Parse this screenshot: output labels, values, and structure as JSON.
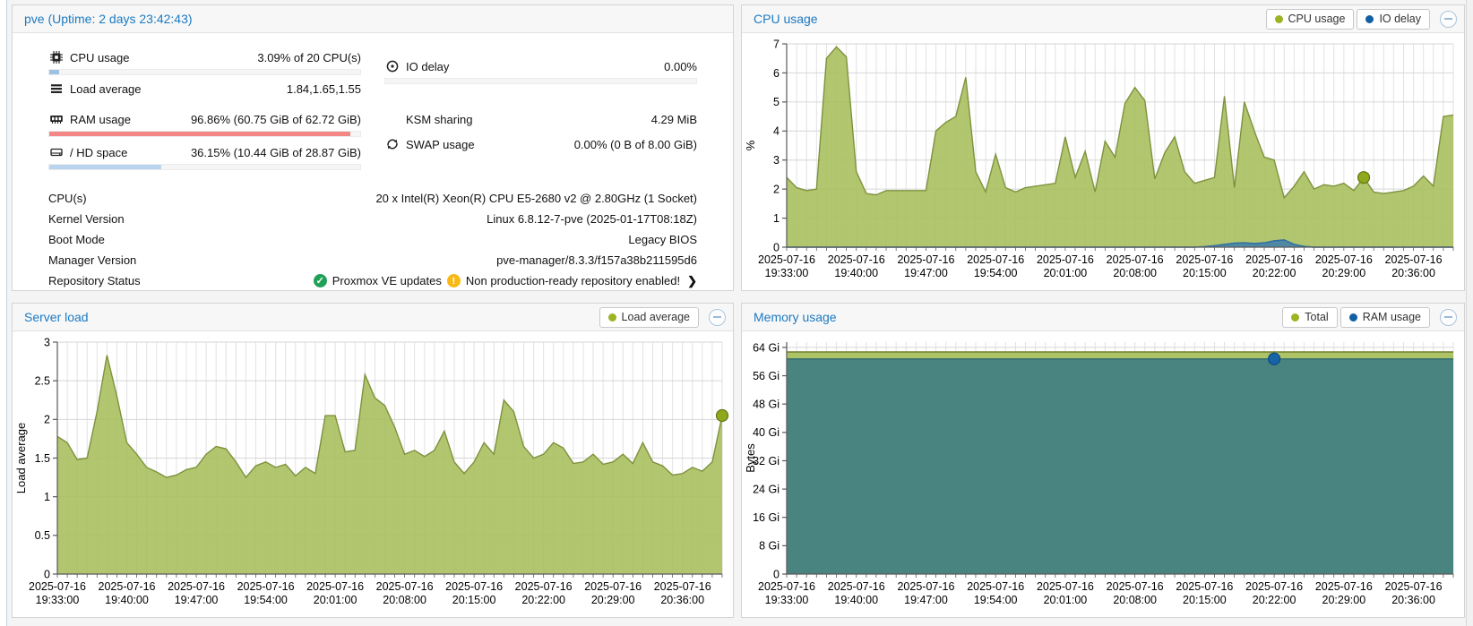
{
  "node_panel": {
    "title": "pve (Uptime: 2 days 23:42:43)",
    "stats_left": [
      {
        "icon": "cpu-icon",
        "label": "CPU usage",
        "value": "3.09% of 20 CPU(s)",
        "bar_pct": 3.09,
        "bar_color": "#9dc2e2"
      },
      {
        "icon": "load-icon",
        "label": "Load average",
        "value": "1.84,1.65,1.55"
      },
      {
        "icon": "ram-icon",
        "label": "RAM usage",
        "value": "96.86% (60.75 GiB of 62.72 GiB)",
        "bar_pct": 96.86,
        "bar_color": "#f48686"
      },
      {
        "icon": "hdd-icon",
        "label": "/ HD space",
        "value": "36.15% (10.44 GiB of 28.87 GiB)",
        "bar_pct": 36.15,
        "bar_color": "#b8d4ee"
      }
    ],
    "stats_right": [
      {
        "icon": "io-delay-icon",
        "label": "IO delay",
        "value": "0.00%",
        "bar_pct": 0,
        "bar_color": "#9dc2e2"
      },
      {
        "icon": "none",
        "label": "KSM sharing",
        "value": "4.29 MiB"
      },
      {
        "icon": "swap-icon",
        "label": "SWAP usage",
        "value": "0.00% (0 B of 8.00 GiB)"
      }
    ],
    "info_rows": [
      {
        "label": "CPU(s)",
        "value": "20 x Intel(R) Xeon(R) CPU E5-2680 v2 @ 2.80GHz (1 Socket)"
      },
      {
        "label": "Kernel Version",
        "value": "Linux 6.8.12-7-pve (2025-01-17T08:18Z)"
      },
      {
        "label": "Boot Mode",
        "value": "Legacy BIOS"
      },
      {
        "label": "Manager Version",
        "value": "pve-manager/8.3.3/f157a38b211595d6"
      }
    ],
    "repo": {
      "label": "Repository Status",
      "ok_text": "Proxmox VE updates",
      "ok_color": "#21a157",
      "warn_text": "Non production-ready repository enabled!",
      "warn_color": "#f9b915"
    }
  },
  "chart_data": [
    {
      "type": "area",
      "title": "CPU usage",
      "xlabel": "",
      "ylabel": "%",
      "ylim": [
        0,
        7
      ],
      "yticks": [
        {
          "v": 0,
          "label": "0"
        },
        {
          "v": 1,
          "label": "1"
        },
        {
          "v": 2,
          "label": "2"
        },
        {
          "v": 3,
          "label": "3"
        },
        {
          "v": 4,
          "label": "4"
        },
        {
          "v": 5,
          "label": "5"
        },
        {
          "v": 6,
          "label": "6"
        },
        {
          "v": 7,
          "label": "7"
        }
      ],
      "x_date": "2025-07-16",
      "x_times": [
        "19:33:00",
        "19:40:00",
        "19:47:00",
        "19:54:00",
        "20:01:00",
        "20:08:00",
        "20:15:00",
        "20:22:00",
        "20:29:00",
        "20:36:00"
      ],
      "label_every": 7,
      "n": 68,
      "legend": [
        {
          "label": "CPU usage",
          "color": "#9cb323"
        },
        {
          "label": "IO delay",
          "color": "#125fa6"
        }
      ],
      "series": [
        {
          "name": "CPU usage",
          "color": "#7e923e",
          "fill": "#a9c05e",
          "fill_opacity": 0.9,
          "values": [
            2.4,
            2.05,
            1.95,
            2.0,
            6.5,
            6.9,
            6.55,
            2.6,
            1.85,
            1.8,
            1.95,
            1.95,
            1.95,
            1.95,
            1.95,
            4.0,
            4.3,
            4.5,
            5.85,
            2.6,
            1.9,
            3.2,
            2.05,
            1.9,
            2.05,
            2.1,
            2.15,
            2.2,
            3.8,
            2.4,
            3.3,
            1.9,
            3.65,
            3.1,
            4.95,
            5.5,
            5.05,
            2.35,
            3.25,
            3.8,
            2.6,
            2.2,
            2.3,
            2.4,
            5.2,
            2.05,
            5.0,
            4.0,
            3.1,
            3.0,
            1.7,
            2.1,
            2.6,
            2.0,
            2.15,
            2.1,
            2.2,
            1.95,
            2.4,
            1.9,
            1.85,
            1.9,
            1.95,
            2.1,
            2.45,
            2.1,
            4.5,
            4.55
          ]
        },
        {
          "name": "IO delay",
          "color": "#2d6da4",
          "fill": "#3d7dae",
          "fill_opacity": 0.85,
          "values": [
            0,
            0,
            0,
            0,
            0,
            0,
            0,
            0,
            0,
            0,
            0,
            0,
            0,
            0,
            0,
            0,
            0,
            0,
            0,
            0,
            0,
            0,
            0,
            0,
            0,
            0,
            0,
            0,
            0,
            0,
            0,
            0,
            0,
            0,
            0,
            0,
            0,
            0,
            0,
            0,
            0,
            0,
            0.02,
            0.05,
            0.1,
            0.14,
            0.15,
            0.13,
            0.15,
            0.22,
            0.25,
            0.1,
            0.03,
            0,
            0,
            0,
            0,
            0,
            0,
            0,
            0,
            0,
            0,
            0,
            0,
            0,
            0,
            0
          ]
        }
      ],
      "markers": [
        {
          "series": 0,
          "i": 58,
          "v": 2.4,
          "fill": "#90a81e",
          "stroke": "#61770d"
        }
      ]
    },
    {
      "type": "area",
      "title": "Server load",
      "xlabel": "",
      "ylabel": "Load average",
      "ylim": [
        0,
        3
      ],
      "yticks": [
        {
          "v": 0,
          "label": "0"
        },
        {
          "v": 0.5,
          "label": "0.5"
        },
        {
          "v": 1,
          "label": "1"
        },
        {
          "v": 1.5,
          "label": "1.5"
        },
        {
          "v": 2,
          "label": "2"
        },
        {
          "v": 2.5,
          "label": "2.5"
        },
        {
          "v": 3,
          "label": "3"
        }
      ],
      "x_date": "2025-07-16",
      "x_times": [
        "19:33:00",
        "19:40:00",
        "19:47:00",
        "19:54:00",
        "20:01:00",
        "20:08:00",
        "20:15:00",
        "20:22:00",
        "20:29:00",
        "20:36:00"
      ],
      "label_every": 7,
      "n": 68,
      "legend": [
        {
          "label": "Load average",
          "color": "#9cb323"
        }
      ],
      "series": [
        {
          "name": "Load average",
          "color": "#7e923e",
          "fill": "#a9c05e",
          "fill_opacity": 0.9,
          "values": [
            1.78,
            1.7,
            1.48,
            1.5,
            2.1,
            2.83,
            2.3,
            1.7,
            1.55,
            1.38,
            1.32,
            1.25,
            1.28,
            1.35,
            1.38,
            1.55,
            1.65,
            1.62,
            1.45,
            1.25,
            1.4,
            1.45,
            1.38,
            1.42,
            1.27,
            1.38,
            1.3,
            2.05,
            2.05,
            1.58,
            1.6,
            2.58,
            2.28,
            2.18,
            1.9,
            1.55,
            1.6,
            1.52,
            1.6,
            1.85,
            1.45,
            1.3,
            1.45,
            1.7,
            1.55,
            2.25,
            2.1,
            1.65,
            1.5,
            1.55,
            1.7,
            1.63,
            1.43,
            1.45,
            1.55,
            1.42,
            1.45,
            1.55,
            1.43,
            1.7,
            1.45,
            1.4,
            1.28,
            1.3,
            1.38,
            1.33,
            1.45,
            2.05
          ]
        }
      ],
      "markers": [
        {
          "series": 0,
          "i": 67,
          "v": 2.05,
          "fill": "#90a81e",
          "stroke": "#61770d"
        }
      ]
    },
    {
      "type": "area",
      "title": "Memory usage",
      "xlabel": "",
      "ylabel": "Bytes",
      "ylim": [
        0,
        65.5
      ],
      "yticks": [
        {
          "v": 0,
          "label": "0"
        },
        {
          "v": 8,
          "label": "8 Gi"
        },
        {
          "v": 16,
          "label": "16 Gi"
        },
        {
          "v": 24,
          "label": "24 Gi"
        },
        {
          "v": 32,
          "label": "32 Gi"
        },
        {
          "v": 40,
          "label": "40 Gi"
        },
        {
          "v": 48,
          "label": "48 Gi"
        },
        {
          "v": 56,
          "label": "56 Gi"
        },
        {
          "v": 64,
          "label": "64 Gi"
        }
      ],
      "x_date": "2025-07-16",
      "x_times": [
        "19:33:00",
        "19:40:00",
        "19:47:00",
        "19:54:00",
        "20:01:00",
        "20:08:00",
        "20:15:00",
        "20:22:00",
        "20:29:00",
        "20:36:00"
      ],
      "label_every": 7,
      "n": 68,
      "legend": [
        {
          "label": "Total",
          "color": "#9cb323"
        },
        {
          "label": "RAM usage",
          "color": "#125fa6"
        }
      ],
      "series": [
        {
          "name": "Total",
          "color": "#6f8030",
          "fill": "#a9c05e",
          "fill_opacity": 0.95,
          "values": [
            62.72,
            62.72,
            62.72,
            62.72,
            62.72,
            62.72,
            62.72,
            62.72,
            62.72,
            62.72,
            62.72,
            62.72,
            62.72,
            62.72,
            62.72,
            62.72,
            62.72,
            62.72,
            62.72,
            62.72,
            62.72,
            62.72,
            62.72,
            62.72,
            62.72,
            62.72,
            62.72,
            62.72,
            62.72,
            62.72,
            62.72,
            62.72,
            62.72,
            62.72,
            62.72,
            62.72,
            62.72,
            62.72,
            62.72,
            62.72,
            62.72,
            62.72,
            62.72,
            62.72,
            62.72,
            62.72,
            62.72,
            62.72,
            62.72,
            62.72,
            62.72,
            62.72,
            62.72,
            62.72,
            62.72,
            62.72,
            62.72,
            62.72,
            62.72,
            62.72,
            62.72,
            62.72,
            62.72,
            62.72,
            62.72,
            62.72,
            62.72,
            62.72
          ]
        },
        {
          "name": "RAM usage",
          "color": "#2e6a6d",
          "fill": "#417f82",
          "fill_opacity": 0.92,
          "values": [
            60.75,
            60.75,
            60.75,
            60.75,
            60.75,
            60.75,
            60.75,
            60.75,
            60.75,
            60.75,
            60.75,
            60.75,
            60.75,
            60.75,
            60.75,
            60.75,
            60.75,
            60.75,
            60.75,
            60.75,
            60.75,
            60.75,
            60.75,
            60.75,
            60.75,
            60.75,
            60.75,
            60.75,
            60.75,
            60.75,
            60.75,
            60.75,
            60.75,
            60.75,
            60.75,
            60.75,
            60.75,
            60.75,
            60.75,
            60.75,
            60.75,
            60.75,
            60.75,
            60.75,
            60.75,
            60.75,
            60.75,
            60.75,
            60.75,
            60.75,
            60.75,
            60.75,
            60.75,
            60.75,
            60.75,
            60.75,
            60.75,
            60.75,
            60.75,
            60.75,
            60.75,
            60.75,
            60.75,
            60.75,
            60.75,
            60.75,
            60.75,
            60.75
          ]
        }
      ],
      "markers": [
        {
          "series": 1,
          "i": 49,
          "v": 60.75,
          "fill": "#1663a8",
          "stroke": "#0c4a82"
        }
      ]
    }
  ]
}
